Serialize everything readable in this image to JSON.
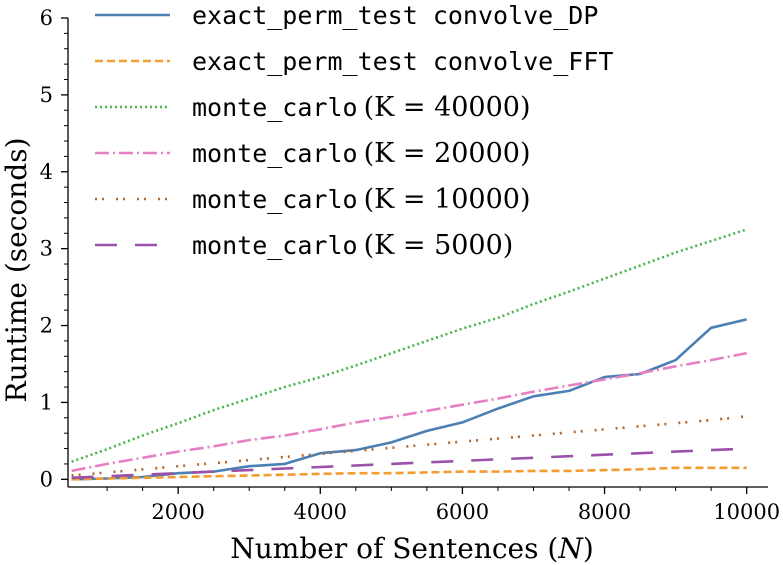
{
  "chart_data": {
    "type": "line",
    "xlabel_parts": [
      "Number of Sentences (",
      "N",
      ")"
    ],
    "ylabel": "Runtime (seconds)",
    "xlim": [
      450,
      10300
    ],
    "ylim": [
      -0.1,
      6
    ],
    "x_ticks": [
      2000,
      4000,
      6000,
      8000,
      10000
    ],
    "y_ticks": [
      0,
      1,
      2,
      3,
      4,
      5,
      6
    ],
    "grid": false,
    "legend_position": "top-left",
    "series": [
      {
        "label_mono": "exact_perm_test convolve_DP",
        "label_math": "",
        "color": "#4c7fb3",
        "dash": "",
        "x": [
          500,
          1000,
          1500,
          2000,
          2500,
          3000,
          3500,
          4000,
          4500,
          5000,
          5500,
          6000,
          6500,
          7000,
          7500,
          8000,
          8500,
          9000,
          9500,
          10000
        ],
        "y": [
          0.0,
          0.01,
          0.03,
          0.08,
          0.1,
          0.17,
          0.2,
          0.34,
          0.38,
          0.48,
          0.63,
          0.74,
          0.92,
          1.08,
          1.15,
          1.33,
          1.37,
          1.55,
          1.97,
          2.08
        ]
      },
      {
        "label_mono": "exact_perm_test convolve_FFT",
        "label_math": "",
        "color": "#f39c2f",
        "dash": "8,4",
        "x": [
          500,
          1000,
          1500,
          2000,
          2500,
          3000,
          3500,
          4000,
          4500,
          5000,
          5500,
          6000,
          6500,
          7000,
          7500,
          8000,
          8500,
          9000,
          9500,
          10000
        ],
        "y": [
          0.0,
          0.01,
          0.02,
          0.03,
          0.04,
          0.05,
          0.06,
          0.07,
          0.08,
          0.08,
          0.09,
          0.1,
          0.1,
          0.11,
          0.11,
          0.12,
          0.13,
          0.15,
          0.15,
          0.15
        ]
      },
      {
        "label_mono": "monte_carlo",
        "label_math": "(K = 40000)",
        "color": "#46b449",
        "dash": "2,3",
        "x": [
          500,
          1000,
          1500,
          2000,
          2500,
          3000,
          3500,
          4000,
          4500,
          5000,
          5500,
          6000,
          6500,
          7000,
          7500,
          8000,
          8500,
          9000,
          9500,
          10000
        ],
        "y": [
          0.23,
          0.39,
          0.57,
          0.73,
          0.9,
          1.05,
          1.2,
          1.33,
          1.48,
          1.64,
          1.8,
          1.96,
          2.1,
          2.28,
          2.44,
          2.61,
          2.78,
          2.95,
          3.1,
          3.25
        ]
      },
      {
        "label_mono": "monte_carlo",
        "label_math": "(K = 20000)",
        "color": "#e77fc3",
        "dash": "14,4,2,4",
        "x": [
          500,
          1000,
          1500,
          2000,
          2500,
          3000,
          3500,
          4000,
          4500,
          5000,
          5500,
          6000,
          6500,
          7000,
          7500,
          8000,
          8500,
          9000,
          9500,
          10000
        ],
        "y": [
          0.11,
          0.2,
          0.28,
          0.36,
          0.43,
          0.51,
          0.57,
          0.65,
          0.74,
          0.81,
          0.89,
          0.97,
          1.05,
          1.14,
          1.22,
          1.3,
          1.38,
          1.47,
          1.55,
          1.64
        ]
      },
      {
        "label_mono": "monte_carlo",
        "label_math": "(K = 10000)",
        "color": "#b2662b",
        "dash": "2,5,2,12",
        "x": [
          500,
          1000,
          1500,
          2000,
          2500,
          3000,
          3500,
          4000,
          4500,
          5000,
          5500,
          6000,
          6500,
          7000,
          7500,
          8000,
          8500,
          9000,
          9500,
          10000
        ],
        "y": [
          0.05,
          0.09,
          0.13,
          0.17,
          0.21,
          0.25,
          0.29,
          0.33,
          0.37,
          0.41,
          0.45,
          0.49,
          0.53,
          0.57,
          0.61,
          0.65,
          0.69,
          0.73,
          0.77,
          0.82
        ]
      },
      {
        "label_mono": "monte_carlo",
        "label_math": "(K = 5000)",
        "color": "#9b50a9",
        "dash": "22,18",
        "x": [
          500,
          1000,
          1500,
          2000,
          2500,
          3000,
          3500,
          4000,
          4500,
          5000,
          5500,
          6000,
          6500,
          7000,
          7500,
          8000,
          8500,
          9000,
          9500,
          10000
        ],
        "y": [
          0.02,
          0.04,
          0.06,
          0.08,
          0.1,
          0.12,
          0.14,
          0.16,
          0.18,
          0.2,
          0.22,
          0.24,
          0.26,
          0.28,
          0.3,
          0.32,
          0.34,
          0.36,
          0.38,
          0.4
        ]
      }
    ]
  }
}
